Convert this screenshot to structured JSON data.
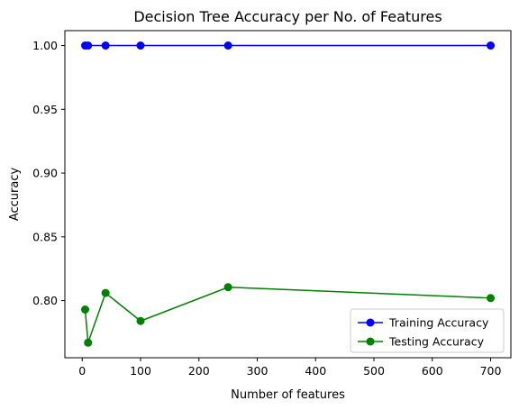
{
  "chart_data": {
    "type": "line",
    "title": "Decision Tree Accuracy per No. of Features",
    "xlabel": "Number of features",
    "ylabel": "Accuracy",
    "xlim": [
      -29.75,
      734.75
    ],
    "ylim": [
      0.7552,
      1.0117
    ],
    "xticks": [
      0,
      100,
      200,
      300,
      400,
      500,
      600,
      700
    ],
    "xtick_labels": [
      "0",
      "100",
      "200",
      "300",
      "400",
      "500",
      "600",
      "700"
    ],
    "yticks": [
      0.8,
      0.85,
      0.9,
      0.95,
      1.0
    ],
    "ytick_labels": [
      "0.80",
      "0.85",
      "0.90",
      "0.95",
      "1.00"
    ],
    "grid": false,
    "legend_position": "lower-right",
    "x": [
      5,
      10,
      40,
      100,
      250,
      700
    ],
    "series": [
      {
        "name": "Training Accuracy",
        "color": "#0000ff",
        "marker": "circle",
        "values": [
          1.0,
          1.0,
          1.0,
          1.0,
          1.0,
          1.0
        ]
      },
      {
        "name": "Testing Accuracy",
        "color": "#008000",
        "marker": "circle",
        "values": [
          0.793,
          0.767,
          0.806,
          0.784,
          0.8105,
          0.802
        ]
      }
    ]
  }
}
